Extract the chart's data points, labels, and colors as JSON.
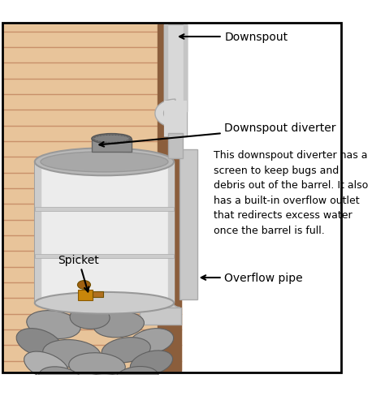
{
  "background_color": "#ffffff",
  "wall_color": "#E8C49A",
  "wood_stripe_color": "#C8906A",
  "corner_color": "#8B5E3C",
  "downspout_color": "#D8D8D8",
  "downspout_edge": "#AAAAAA",
  "barrel_body_color": "#ECECEC",
  "barrel_top_color": "#B8B8B8",
  "barrel_ring_color": "#BBBBBB",
  "overflow_color": "#C8C8C8",
  "overflow_edge": "#AAAAAA",
  "diverter_color": "#888888",
  "diverter_top": "#555555",
  "stone_colors": [
    "#A0A0A0",
    "#909090",
    "#989898",
    "#888888",
    "#B0B0B0"
  ],
  "stone_edge": "#606060",
  "spicket_color": "#C8860A",
  "spicket_dark": "#8B5A00",
  "label_downspout": "Downspout",
  "label_diverter": "Downspout diverter",
  "label_overflow": "Overflow pipe",
  "label_spicket": "Spicket",
  "desc_text": "This downspout diverter has a\nscreen to keep bugs and\ndebris out of the barrel. It also\nhas a built-in overflow outlet\nthat redirects excess water\nonce the barrel is full.",
  "label_font_size": 10,
  "desc_font_size": 9
}
